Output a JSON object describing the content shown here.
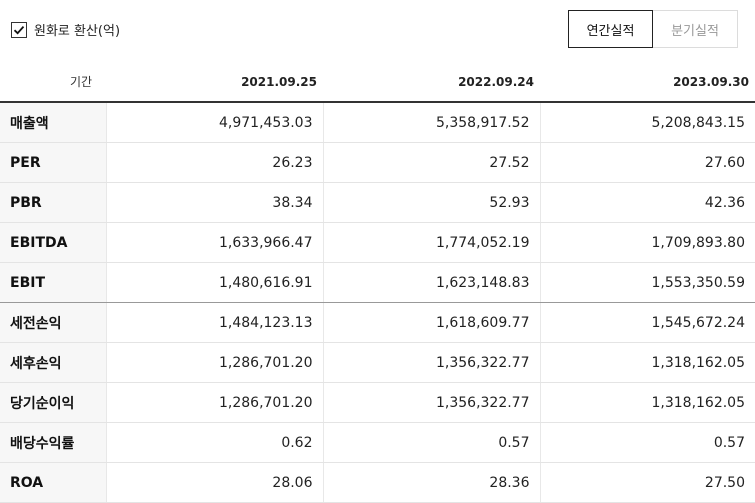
{
  "controls": {
    "krw_convert_label": "원화로 환산(억)",
    "krw_convert_checked": true,
    "annual_label": "연간실적",
    "quarterly_label": "분기실적",
    "selected_period": "annual"
  },
  "table": {
    "header_label": "기간",
    "periods": [
      "2021.09.25",
      "2022.09.24",
      "2023.09.30"
    ],
    "rows": [
      {
        "label": "매출액",
        "values": [
          "4,971,453.03",
          "5,358,917.52",
          "5,208,843.15"
        ]
      },
      {
        "label": "PER",
        "values": [
          "26.23",
          "27.52",
          "27.60"
        ]
      },
      {
        "label": "PBR",
        "values": [
          "38.34",
          "52.93",
          "42.36"
        ]
      },
      {
        "label": "EBITDA",
        "values": [
          "1,633,966.47",
          "1,774,052.19",
          "1,709,893.80"
        ]
      },
      {
        "label": "EBIT",
        "values": [
          "1,480,616.91",
          "1,623,148.83",
          "1,553,350.59"
        ]
      },
      {
        "label": "세전손익",
        "values": [
          "1,484,123.13",
          "1,618,609.77",
          "1,545,672.24"
        ]
      },
      {
        "label": "세후손익",
        "values": [
          "1,286,701.20",
          "1,356,322.77",
          "1,318,162.05"
        ]
      },
      {
        "label": "당기순이익",
        "values": [
          "1,286,701.20",
          "1,356,322.77",
          "1,318,162.05"
        ]
      },
      {
        "label": "배당수익률",
        "values": [
          "0.62",
          "0.57",
          "0.57"
        ]
      },
      {
        "label": "ROA",
        "values": [
          "28.06",
          "28.36",
          "27.50"
        ]
      }
    ]
  }
}
